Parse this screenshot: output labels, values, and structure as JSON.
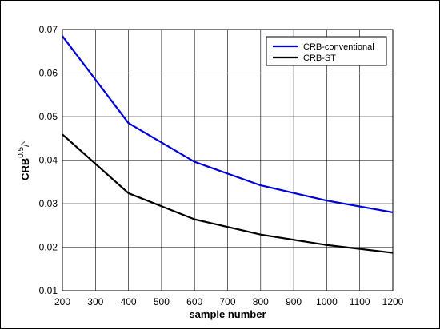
{
  "chart_data": {
    "type": "line",
    "title": "",
    "xlabel": "sample number",
    "ylabel": {
      "base": "CRB",
      "sup": "0.5",
      "unit": "/°"
    },
    "x": [
      200,
      400,
      600,
      800,
      1000,
      1200
    ],
    "xlim": [
      200,
      1200
    ],
    "ylim": [
      0.01,
      0.07
    ],
    "xticks": [
      "200",
      "300",
      "400",
      "500",
      "600",
      "700",
      "800",
      "900",
      "1000",
      "1100",
      "1200"
    ],
    "yticks": [
      "0.01",
      "0.02",
      "0.03",
      "0.04",
      "0.05",
      "0.06",
      "0.07"
    ],
    "grid": true,
    "legend_position": "top-right",
    "series": [
      {
        "name": "CRB-conventional",
        "color": "#0000d9",
        "values": [
          0.0685,
          0.0485,
          0.0396,
          0.0342,
          0.0307,
          0.028
        ]
      },
      {
        "name": "CRB-ST",
        "color": "#000000",
        "values": [
          0.0459,
          0.0324,
          0.0264,
          0.0229,
          0.0205,
          0.0187
        ]
      }
    ]
  }
}
